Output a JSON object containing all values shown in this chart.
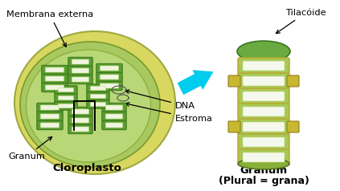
{
  "bg_color": "#ffffff",
  "labels": {
    "membrana_externa": "Membrana externa",
    "granum": "Granum",
    "cloroplasto": "Cloroplasto",
    "dna": "DNA",
    "estroma": "Estroma",
    "tilacoide": "Tilacóide",
    "granum2": "Granum",
    "plural": "(Plural = grana)"
  },
  "colors": {
    "outer_yellow": "#d8d860",
    "inner_green": "#a8c860",
    "stroma_fill": "#b8d878",
    "thylakoid_dark": "#5a9e30",
    "thylakoid_mid": "#7ab840",
    "thylakoid_light": "#c8e090",
    "thylakoid_white": "#f0f5e0",
    "granum_outline": "#b8a830",
    "granum_fill": "#a8c858",
    "granum_white": "#f5f8ec",
    "granum_top": "#6aaa40",
    "tab_color": "#c8b830",
    "arrow_cyan": "#00ccee",
    "text_color": "#000000"
  }
}
